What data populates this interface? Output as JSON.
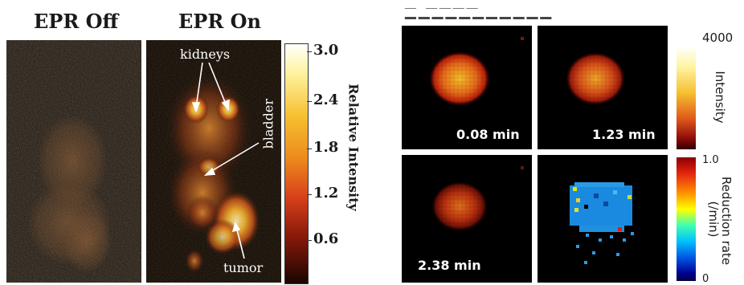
{
  "left_figure": {
    "title_off": "EPR Off",
    "title_on": "EPR On",
    "annotations": {
      "kidneys": "kidneys",
      "bladder": "bladder",
      "tumor": "tumor"
    },
    "colorbar": {
      "label": "Relative Intensity",
      "ticks": [
        "3.0",
        "2.4",
        "1.8",
        "1.2",
        "0.6"
      ]
    }
  },
  "right_figure": {
    "frames": [
      {
        "time": "0.08 min"
      },
      {
        "time": "1.23 min"
      },
      {
        "time": "2.38 min"
      },
      {
        "time": ""
      }
    ],
    "intensity_bar": {
      "max": "4000",
      "label": "Intensity"
    },
    "rate_bar": {
      "max": "1.0",
      "min": "0",
      "label": "Reduction rate",
      "unit": "(/min)"
    }
  },
  "colors": {
    "hot_low": "#1a0000",
    "hot_mid": "#e0361a",
    "hot_high": "#ffffff",
    "jet_low": "#000080",
    "jet_high": "#8b0000"
  }
}
